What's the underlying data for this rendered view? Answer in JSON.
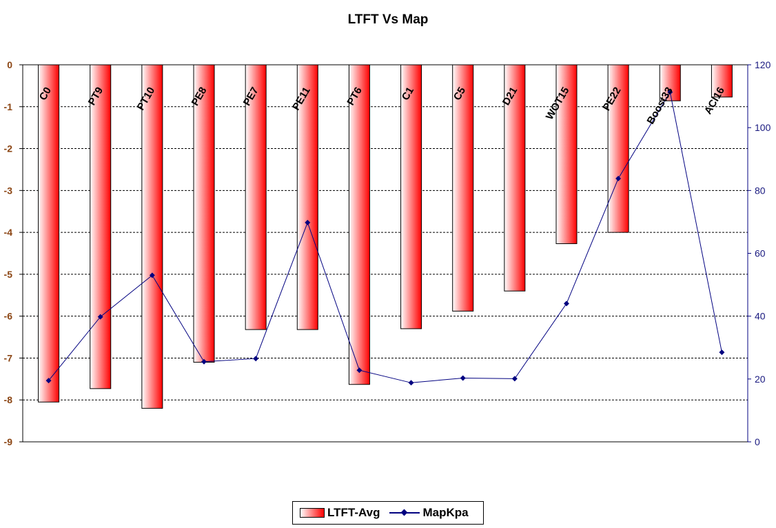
{
  "chart_data": {
    "type": "bar+line",
    "title": "LTFT Vs Map",
    "categories": [
      "C0",
      "PT9",
      "PT10",
      "PE8",
      "PE7",
      "PE11",
      "PT6",
      "C1",
      "C5",
      "D21",
      "WOT15",
      "PE22",
      "Boost33",
      "ACl16"
    ],
    "series": [
      {
        "name": "LTFT-Avg",
        "type": "bar",
        "axis": "left",
        "values": [
          -8.05,
          -7.73,
          -8.2,
          -7.1,
          -6.32,
          -6.32,
          -7.63,
          -6.3,
          -5.88,
          -5.4,
          -4.27,
          -4.0,
          -0.86,
          -0.77
        ]
      },
      {
        "name": "MapKpa",
        "type": "line",
        "axis": "right",
        "values": [
          19.5,
          39.8,
          53.0,
          25.5,
          26.5,
          69.8,
          22.8,
          18.8,
          20.3,
          20.1,
          44.0,
          83.8,
          111.3,
          28.5
        ]
      }
    ],
    "y_left": {
      "min": -9,
      "max": 0,
      "ticks": [
        "0",
        "-1",
        "-2",
        "-3",
        "-4",
        "-5",
        "-6",
        "-7",
        "-8",
        "-9"
      ]
    },
    "y_right": {
      "min": 0,
      "max": 120,
      "ticks": [
        "120",
        "100",
        "80",
        "60",
        "40",
        "20",
        "0"
      ]
    },
    "grid": true,
    "legend_position": "bottom",
    "colors": {
      "bar_start": "#ffffff",
      "bar_end": "#ff0000",
      "line": "#000080",
      "left_axis_text": "#8B4513",
      "right_axis_text": "#1a1a80"
    }
  },
  "legend": {
    "bar_label": "LTFT-Avg",
    "line_label": "MapKpa"
  }
}
